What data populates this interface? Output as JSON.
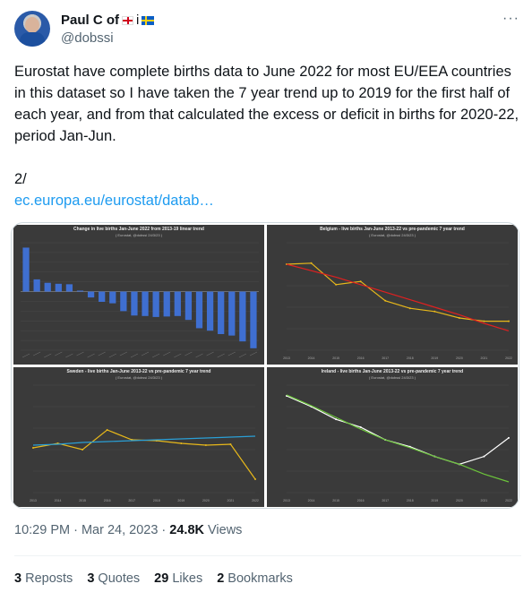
{
  "author": {
    "name": "Paul C of",
    "name_suffix": "i",
    "handle": "@dobssi"
  },
  "more_label": "···",
  "tweet": {
    "text": "Eurostat have complete births data to June 2022 for most EU/EEA countries in this dataset so I have taken the 7 year trend up to 2019 for the first half of each year, and from that calculated the excess or deficit in births for 2020-22, period Jan-Jun.",
    "footnote": "2/",
    "link": "ec.europa.eu/eurostat/datab…"
  },
  "meta": {
    "time": "10:29 PM · Mar 24, 2023 · ",
    "views_count": "24.8K",
    "views_label": " Views"
  },
  "stats": [
    {
      "count": "3",
      "label": "Reposts"
    },
    {
      "count": "3",
      "label": "Quotes"
    },
    {
      "count": "29",
      "label": "Likes"
    },
    {
      "count": "2",
      "label": "Bookmarks"
    }
  ],
  "colors": {
    "link": "#1d9bf0",
    "muted": "#536471",
    "chart_bg": "#3a3a3a"
  },
  "chart_data": [
    {
      "type": "bar",
      "title": "Change in live births Jan-June 2022 from 2013-19 linear trend",
      "subtitle": "( Eurostat, @dobssi 24/3/23 )",
      "values": [
        9.0,
        2.5,
        1.8,
        1.6,
        1.5,
        0.2,
        -1.2,
        -2.1,
        -2.4,
        -4.0,
        -4.9,
        -5.0,
        -5.2,
        -5.1,
        -5.0,
        -5.8,
        -7.5,
        -8.0,
        -8.7,
        -9.0,
        -10.2,
        -11.6
      ],
      "ylim": [
        -12,
        10
      ]
    },
    {
      "type": "line",
      "title": "Belgium - live births Jan-June 2013-22 vs pre-pandemic 7 year trend",
      "subtitle": "( Eurostat, @dobssi 24/3/23 )",
      "x": [
        "2013",
        "2014",
        "2015",
        "2016",
        "2017",
        "2018",
        "2019",
        "2020",
        "2021",
        "2022"
      ],
      "series": [
        {
          "values": [
            62000,
            62100,
            60100,
            60400,
            58600,
            57900,
            57600,
            57000,
            56700,
            56700
          ]
        },
        {
          "values": [
            62000,
            61400,
            60800,
            60100,
            59400,
            58700,
            58000,
            57300,
            56500,
            55800
          ]
        }
      ],
      "ylim": [
        54000,
        64000
      ]
    },
    {
      "type": "line",
      "title": "Sweden - live births Jan-June 2013-22 vs pre-pandemic 7 year trend",
      "subtitle": "( Eurostat, @dobssi 24/3/23 )",
      "x": [
        "2013",
        "2014",
        "2015",
        "2016",
        "2017",
        "2018",
        "2019",
        "2020",
        "2021",
        "2022"
      ],
      "series": [
        {
          "values": [
            57000,
            57500,
            56800,
            59000,
            57900,
            57800,
            57500,
            57300,
            57400,
            53500
          ]
        },
        {
          "values": [
            57300,
            57400,
            57600,
            57700,
            57800,
            57900,
            58000,
            58100,
            58200,
            58300
          ]
        }
      ],
      "ylim": [
        52000,
        64000
      ]
    },
    {
      "type": "line",
      "title": "Ireland - live births Jan-June 2013-22 vs pre-pandemic 7 year trend",
      "subtitle": "( Eurostat, @dobssi 24/3/23 )",
      "x": [
        "2013",
        "2014",
        "2015",
        "2016",
        "2017",
        "2018",
        "2019",
        "2020",
        "2021",
        "2022"
      ],
      "series": [
        {
          "values": [
            34900,
            33800,
            32500,
            31700,
            30400,
            29700,
            28700,
            27900,
            28700,
            30600
          ]
        },
        {
          "values": [
            35000,
            33900,
            32700,
            31500,
            30400,
            29600,
            28700,
            27900,
            26900,
            26100
          ]
        }
      ],
      "ylim": [
        25000,
        36000
      ]
    }
  ]
}
